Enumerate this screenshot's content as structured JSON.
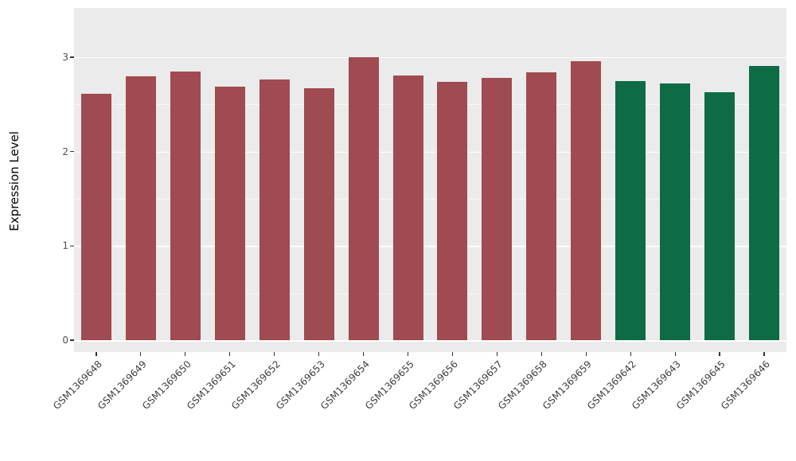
{
  "chart_data": {
    "type": "bar",
    "title": "",
    "xlabel": "",
    "ylabel": "Expression Level",
    "ylim": [
      0,
      3.15
    ],
    "yticks": [
      0,
      1,
      2,
      3
    ],
    "grid": {
      "major": [
        0,
        1,
        2,
        3
      ],
      "minor": [
        0.5,
        1.5,
        2.5
      ]
    },
    "legend_position": "none",
    "categories": [
      "GSM1369648",
      "GSM1369649",
      "GSM1369650",
      "GSM1369651",
      "GSM1369652",
      "GSM1369653",
      "GSM1369654",
      "GSM1369655",
      "GSM1369656",
      "GSM1369657",
      "GSM1369658",
      "GSM1369659",
      "GSM1369642",
      "GSM1369643",
      "GSM1369645",
      "GSM1369646"
    ],
    "values": [
      2.61,
      2.8,
      2.85,
      2.69,
      2.76,
      2.67,
      3.0,
      2.81,
      2.74,
      2.78,
      2.84,
      2.96,
      2.75,
      2.72,
      2.63,
      2.91
    ],
    "groups": [
      "red",
      "red",
      "red",
      "red",
      "red",
      "red",
      "red",
      "red",
      "red",
      "red",
      "red",
      "red",
      "green",
      "green",
      "green",
      "green"
    ],
    "group_colors": {
      "red": "#A04A51",
      "green": "#0D6B45"
    }
  },
  "colors": {
    "page_bg": "#FFFFFF",
    "panel_bg": "#EBEBEB",
    "grid": "#FFFFFF",
    "axis_text": "#4D4D4D",
    "axis_title": "#000000",
    "tick_mark": "#333333"
  }
}
